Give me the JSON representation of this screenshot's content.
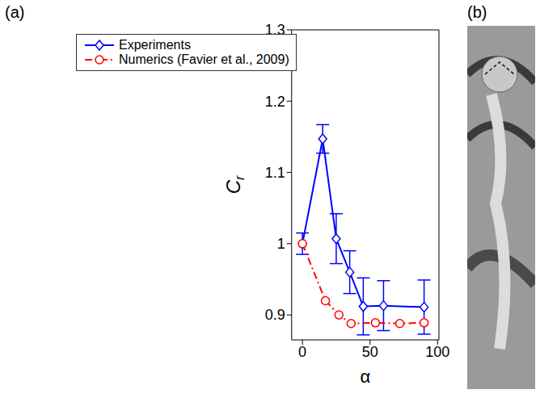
{
  "chart_data": {
    "type": "line",
    "panel_labels": [
      "(a)",
      "(b)"
    ],
    "xlabel": "α",
    "ylabel": "Cr",
    "xlim": [
      -8,
      101
    ],
    "xticks": [
      0,
      50,
      100
    ],
    "ylim": [
      0.865,
      1.3
    ],
    "yticks": [
      0.9,
      1,
      1.1,
      1.2,
      1.3
    ],
    "grid": false,
    "legend": "upper left",
    "series": [
      {
        "name": "Experiments",
        "color": "#0000ff",
        "marker": "diamond",
        "line_style": "solid",
        "x": [
          0,
          15,
          25,
          35,
          45,
          60,
          90
        ],
        "values": [
          1.0,
          1.147,
          1.007,
          0.96,
          0.912,
          0.913,
          0.911
        ],
        "errors": [
          0.015,
          0.02,
          0.035,
          0.03,
          0.04,
          0.035,
          0.038
        ]
      },
      {
        "name": "Numerics (Favier et al., 2009)",
        "color": "#ff0000",
        "marker": "circle",
        "line_style": "dashdot",
        "x": [
          0,
          17,
          27,
          36,
          54,
          72,
          90
        ],
        "values": [
          1.0,
          0.92,
          0.9,
          0.888,
          0.889,
          0.888,
          0.889
        ]
      }
    ]
  }
}
